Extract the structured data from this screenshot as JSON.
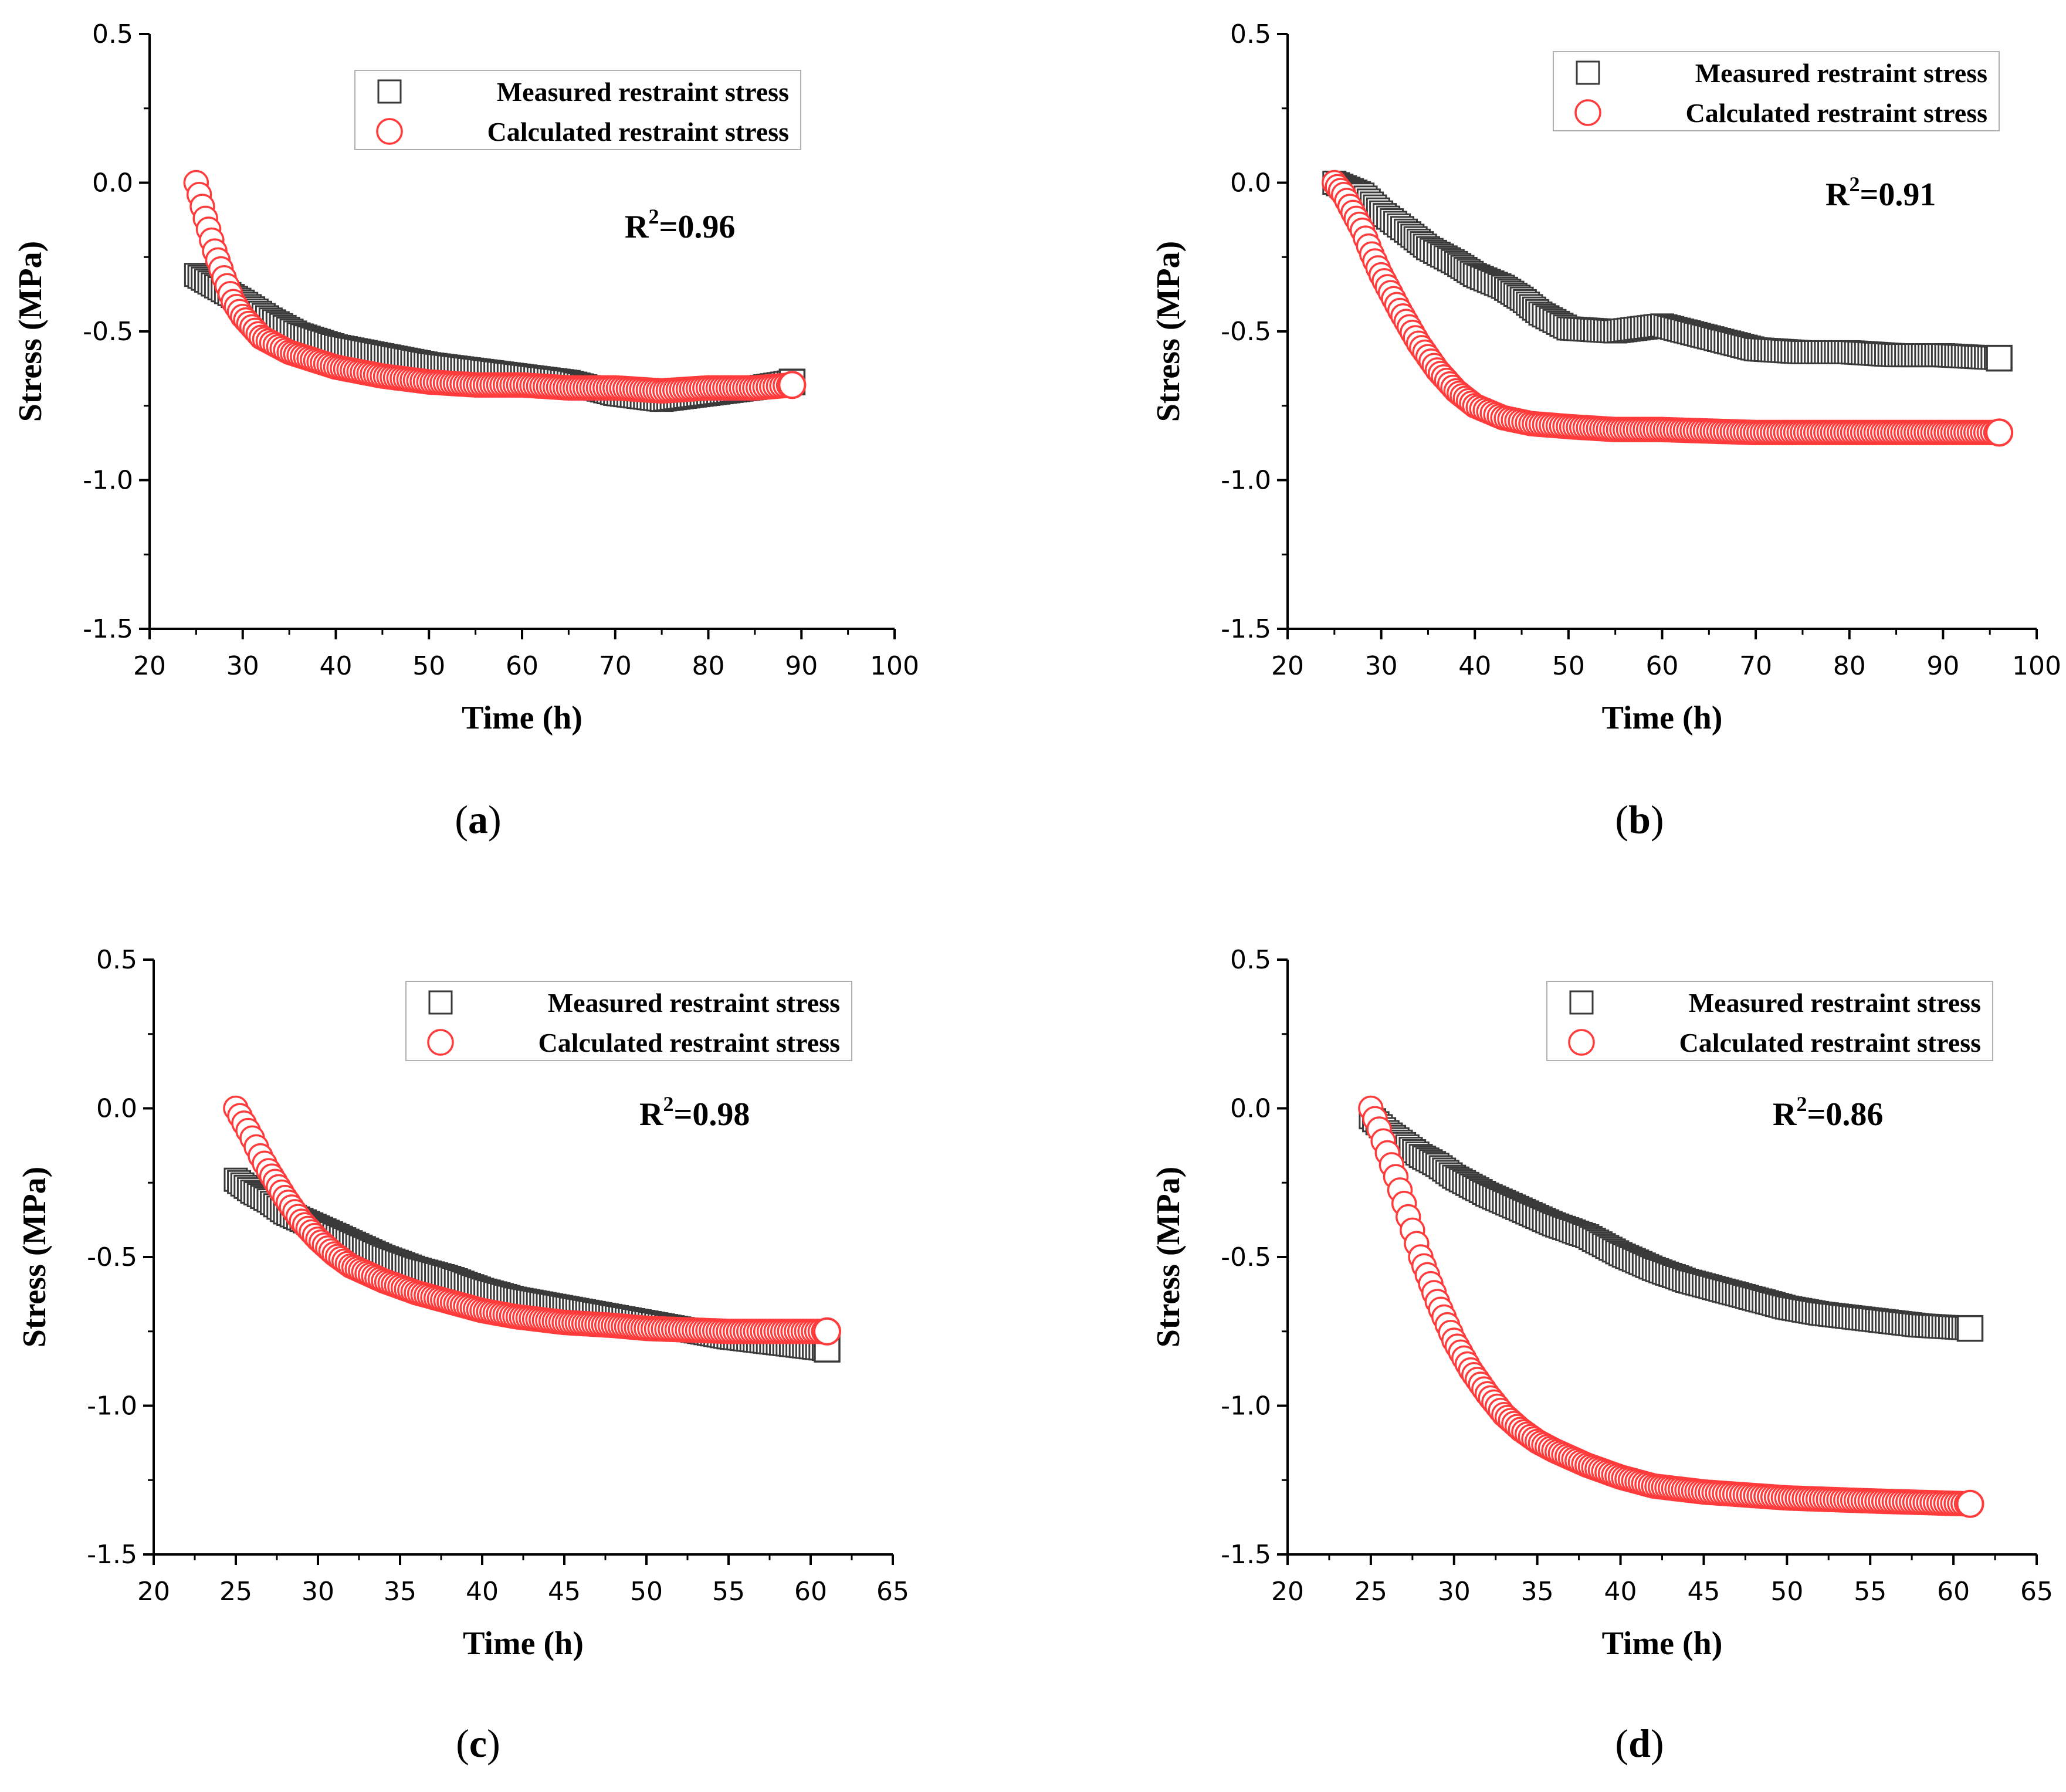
{
  "figure": {
    "colors": {
      "measured": "#3a3a3a",
      "calculated": "#ff3b3b",
      "axis": "#000000"
    },
    "icons": {
      "measured": "square-marker-icon",
      "calculated": "circle-marker-icon"
    }
  },
  "chart_data": [
    {
      "type": "scatter",
      "panel_label": "a",
      "xlabel": "Time (h)",
      "ylabel": "Stress (MPa)",
      "xlim": [
        20,
        100
      ],
      "ylim": [
        -1.5,
        0.5
      ],
      "xticks": [
        20,
        30,
        40,
        50,
        60,
        70,
        80,
        90,
        100
      ],
      "yticks": [
        0.5,
        0.0,
        -0.5,
        -1.0,
        -1.5
      ],
      "xtick_labels": [
        "20",
        "30",
        "40",
        "50",
        "60",
        "70",
        "80",
        "90",
        "100"
      ],
      "ytick_labels": [
        "0.5",
        "0.0",
        "-0.5",
        "-1.0",
        "-1.5"
      ],
      "legend_position": "top-right",
      "annotation": {
        "prefix": "R",
        "sup": "2",
        "suffix": "=0.96"
      },
      "series": [
        {
          "name": "Measured restraint stress",
          "marker": "square",
          "x": [
            25,
            30,
            33,
            36,
            40,
            45,
            50,
            55,
            60,
            65,
            70,
            75,
            80,
            85,
            89
          ],
          "y": [
            -0.31,
            -0.4,
            -0.46,
            -0.51,
            -0.55,
            -0.58,
            -0.61,
            -0.63,
            -0.65,
            -0.67,
            -0.71,
            -0.73,
            -0.71,
            -0.69,
            -0.67
          ]
        },
        {
          "name": "Calculated restraint stress",
          "marker": "circle",
          "x": [
            25,
            26,
            27,
            28,
            29,
            30,
            32,
            35,
            40,
            45,
            50,
            55,
            60,
            65,
            70,
            75,
            80,
            85,
            89
          ],
          "y": [
            0.0,
            -0.12,
            -0.23,
            -0.32,
            -0.4,
            -0.45,
            -0.52,
            -0.57,
            -0.62,
            -0.65,
            -0.67,
            -0.68,
            -0.68,
            -0.69,
            -0.69,
            -0.7,
            -0.69,
            -0.69,
            -0.68
          ]
        }
      ]
    },
    {
      "type": "scatter",
      "panel_label": "b",
      "xlabel": "Time (h)",
      "ylabel": "Stress (MPa)",
      "xlim": [
        20,
        100
      ],
      "ylim": [
        -1.5,
        0.5
      ],
      "xticks": [
        20,
        30,
        40,
        50,
        60,
        70,
        80,
        90,
        100
      ],
      "yticks": [
        0.5,
        0.0,
        -0.5,
        -1.0,
        -1.5
      ],
      "xtick_labels": [
        "20",
        "30",
        "40",
        "50",
        "60",
        "70",
        "80",
        "90",
        "100"
      ],
      "ytick_labels": [
        "0.5",
        "0.0",
        "-0.5",
        "-1.0",
        "-1.5"
      ],
      "legend_position": "top-right",
      "annotation": {
        "prefix": "R",
        "sup": "2",
        "suffix": "=0.91"
      },
      "series": [
        {
          "name": "Measured restraint stress",
          "marker": "square",
          "x": [
            25,
            28,
            30,
            33,
            35,
            38,
            40,
            43,
            45,
            47,
            50,
            55,
            60,
            65,
            70,
            75,
            80,
            85,
            90,
            96
          ],
          "y": [
            0.0,
            -0.04,
            -0.1,
            -0.17,
            -0.22,
            -0.27,
            -0.31,
            -0.35,
            -0.39,
            -0.44,
            -0.49,
            -0.5,
            -0.48,
            -0.52,
            -0.56,
            -0.57,
            -0.57,
            -0.58,
            -0.58,
            -0.59
          ]
        },
        {
          "name": "Calculated restraint stress",
          "marker": "circle",
          "x": [
            25,
            26,
            27,
            28,
            29,
            30,
            32,
            34,
            36,
            38,
            40,
            43,
            46,
            50,
            55,
            60,
            70,
            80,
            90,
            96
          ],
          "y": [
            0.0,
            -0.04,
            -0.1,
            -0.16,
            -0.24,
            -0.31,
            -0.43,
            -0.54,
            -0.63,
            -0.7,
            -0.75,
            -0.79,
            -0.81,
            -0.82,
            -0.83,
            -0.83,
            -0.84,
            -0.84,
            -0.84,
            -0.84
          ]
        }
      ]
    },
    {
      "type": "scatter",
      "panel_label": "c",
      "xlabel": "Time (h)",
      "ylabel": "Stress (MPa)",
      "xlim": [
        20,
        65
      ],
      "ylim": [
        -1.5,
        0.5
      ],
      "xticks": [
        20,
        25,
        30,
        35,
        40,
        45,
        50,
        55,
        60,
        65
      ],
      "yticks": [
        0.5,
        0.0,
        -0.5,
        -1.0,
        -1.5
      ],
      "xtick_labels": [
        "20",
        "25",
        "30",
        "35",
        "40",
        "45",
        "50",
        "55",
        "60",
        "65"
      ],
      "ytick_labels": [
        "0.5",
        "0.0",
        "-0.5",
        "-1.0",
        "-1.5"
      ],
      "legend_position": "top-right",
      "annotation": {
        "prefix": "R",
        "sup": "2",
        "suffix": "=0.98"
      },
      "series": [
        {
          "name": "Measured restraint stress",
          "marker": "square",
          "x": [
            25,
            26,
            27,
            28,
            30,
            32,
            34,
            36,
            38,
            40,
            42,
            45,
            48,
            50,
            52,
            55,
            58,
            61
          ],
          "y": [
            -0.24,
            -0.28,
            -0.31,
            -0.35,
            -0.4,
            -0.45,
            -0.5,
            -0.54,
            -0.57,
            -0.61,
            -0.64,
            -0.67,
            -0.7,
            -0.72,
            -0.74,
            -0.77,
            -0.79,
            -0.81
          ]
        },
        {
          "name": "Calculated restraint stress",
          "marker": "circle",
          "x": [
            25,
            25.5,
            26,
            26.5,
            27,
            28,
            29,
            30,
            31,
            32,
            34,
            36,
            38,
            40,
            42,
            45,
            48,
            50,
            55,
            61
          ],
          "y": [
            0.0,
            -0.05,
            -0.1,
            -0.16,
            -0.21,
            -0.3,
            -0.38,
            -0.44,
            -0.49,
            -0.53,
            -0.58,
            -0.62,
            -0.65,
            -0.68,
            -0.7,
            -0.72,
            -0.73,
            -0.74,
            -0.75,
            -0.75
          ]
        }
      ]
    },
    {
      "type": "scatter",
      "panel_label": "d",
      "xlabel": "Time (h)",
      "ylabel": "Stress (MPa)",
      "xlim": [
        20,
        65
      ],
      "ylim": [
        -1.5,
        0.5
      ],
      "xticks": [
        20,
        25,
        30,
        35,
        40,
        45,
        50,
        55,
        60,
        65
      ],
      "yticks": [
        0.5,
        0.0,
        -0.5,
        -1.0,
        -1.5
      ],
      "xtick_labels": [
        "20",
        "25",
        "30",
        "35",
        "40",
        "45",
        "50",
        "55",
        "60",
        "65"
      ],
      "ytick_labels": [
        "0.5",
        "0.0",
        "-0.5",
        "-1.0",
        "-1.5"
      ],
      "legend_position": "top-right",
      "annotation": {
        "prefix": "R",
        "sup": "2",
        "suffix": "=0.86"
      },
      "series": [
        {
          "name": "Measured restraint stress",
          "marker": "square",
          "x": [
            25,
            26,
            27,
            28,
            29,
            30,
            32,
            34,
            36,
            38,
            40,
            42,
            44,
            46,
            48,
            50,
            52,
            55,
            58,
            61
          ],
          "y": [
            -0.03,
            -0.08,
            -0.12,
            -0.16,
            -0.19,
            -0.23,
            -0.29,
            -0.34,
            -0.39,
            -0.43,
            -0.49,
            -0.54,
            -0.58,
            -0.61,
            -0.64,
            -0.67,
            -0.69,
            -0.71,
            -0.73,
            -0.74
          ]
        },
        {
          "name": "Calculated restraint stress",
          "marker": "circle",
          "x": [
            25,
            25.5,
            26,
            26.5,
            27,
            27.5,
            28,
            29,
            30,
            31,
            32,
            33,
            34,
            35,
            36,
            38,
            40,
            42,
            45,
            50,
            55,
            61
          ],
          "y": [
            0.0,
            -0.07,
            -0.15,
            -0.23,
            -0.32,
            -0.41,
            -0.5,
            -0.65,
            -0.78,
            -0.88,
            -0.96,
            -1.03,
            -1.08,
            -1.12,
            -1.15,
            -1.2,
            -1.24,
            -1.27,
            -1.29,
            -1.31,
            -1.32,
            -1.33
          ]
        }
      ]
    }
  ]
}
